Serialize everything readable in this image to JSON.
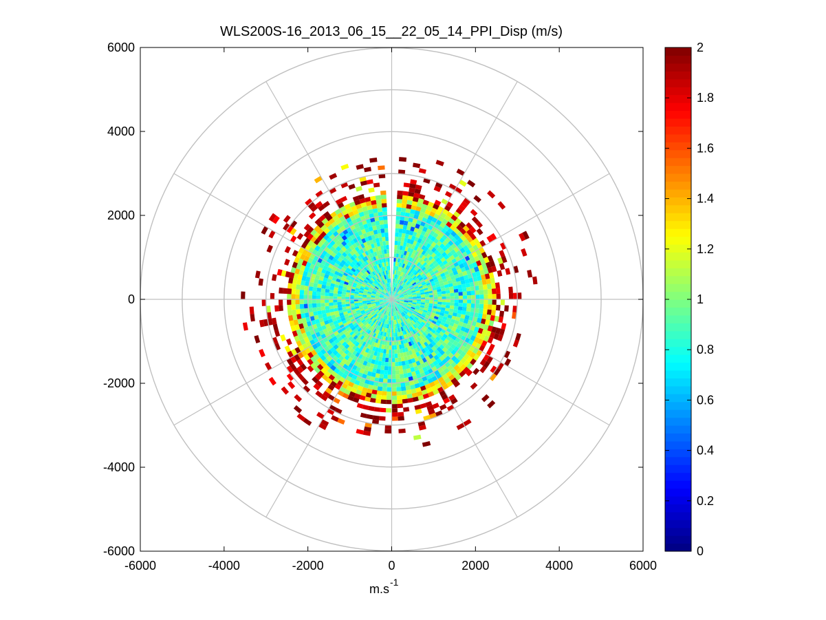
{
  "chart_data": {
    "type": "heatmap",
    "subtype": "polar-ppi",
    "title": "WLS200S-16_2013_06_15__22_05_14_PPI_Disp (m/s)",
    "xlabel": "m.s",
    "xlabel_exponent": "-1",
    "ylabel": "",
    "xlim": [
      -6000,
      6000
    ],
    "ylim": [
      -6000,
      6000
    ],
    "x_ticks": [
      "-6000",
      "-4000",
      "-2000",
      "0",
      "2000",
      "4000",
      "6000"
    ],
    "y_ticks": [
      "6000",
      "4000",
      "2000",
      "0",
      "-2000",
      "-4000",
      "-6000"
    ],
    "x_tick_values": [
      -6000,
      -4000,
      -2000,
      0,
      2000,
      4000,
      6000
    ],
    "y_tick_values": [
      6000,
      4000,
      2000,
      0,
      -2000,
      -4000,
      -6000
    ],
    "range_rings": [
      1000,
      2000,
      3000,
      4000,
      5000,
      6000
    ],
    "azimuth_spokes_deg": [
      0,
      30,
      60,
      90,
      120,
      150,
      180,
      210,
      240,
      270,
      300,
      330
    ],
    "dense_core_radius": 2450,
    "gap_azimuth_deg": [
      -3,
      3
    ],
    "outer_band": [
      2400,
      3600
    ],
    "colorbar": {
      "colormap": "jet",
      "range": [
        0,
        2
      ],
      "ticks": [
        "0",
        "0.2",
        "0.4",
        "0.6",
        "0.8",
        "1",
        "1.2",
        "1.4",
        "1.6",
        "1.8",
        "2"
      ],
      "tick_values": [
        0,
        0.2,
        0.4,
        0.6,
        0.8,
        1,
        1.2,
        1.4,
        1.6,
        1.8,
        2
      ]
    },
    "grid": true,
    "grid_color": "#c0c0c0"
  }
}
